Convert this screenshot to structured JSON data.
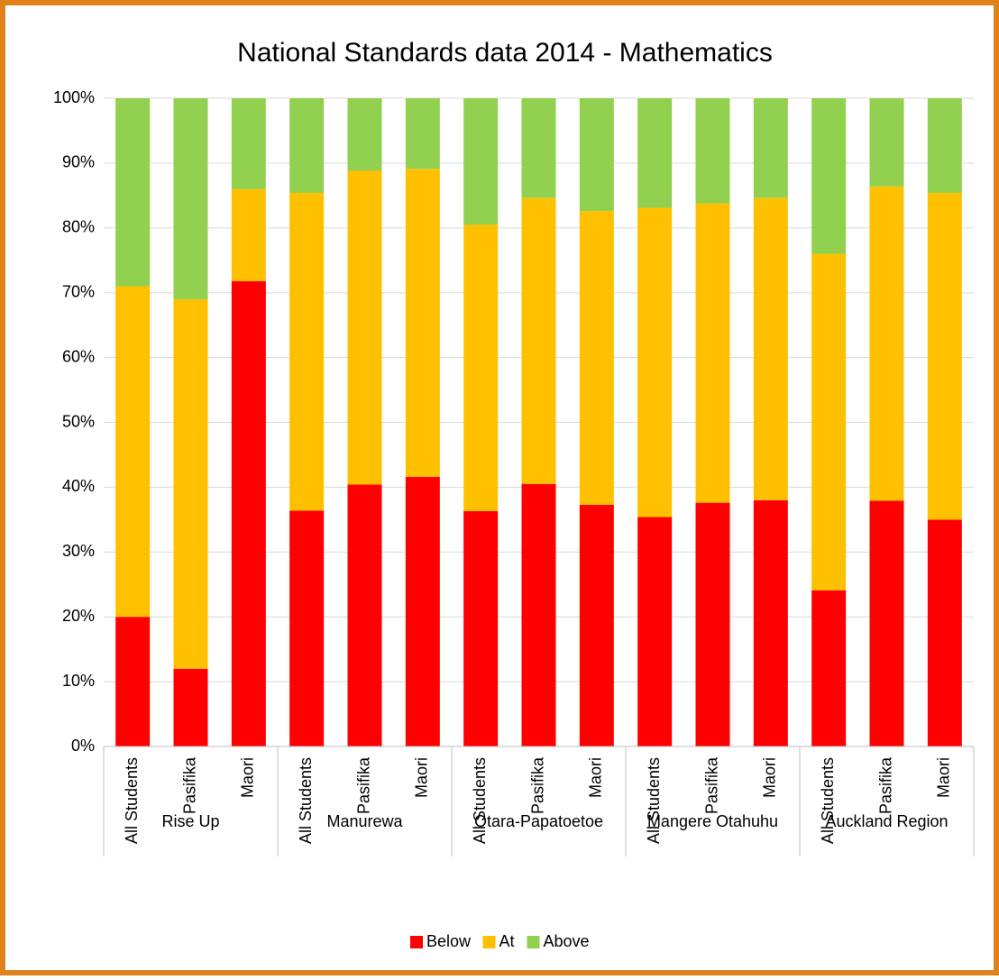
{
  "chart_data": {
    "type": "stacked_bar",
    "title": "National Standards data 2014 - Mathematics",
    "groups": [
      {
        "label": "Rise Up",
        "categories": [
          "All Students",
          "Pasifika",
          "Maori"
        ]
      },
      {
        "label": "Manurewa",
        "categories": [
          "All Students",
          "Pasifika",
          "Maori"
        ]
      },
      {
        "label": "Otara-Papatoetoe",
        "categories": [
          "All Students",
          "Pasifika",
          "Maori"
        ]
      },
      {
        "label": "Mangere Otahuhu",
        "categories": [
          "All Students",
          "Pasifika",
          "Maori"
        ]
      },
      {
        "label": "Auckland Region",
        "categories": [
          "All Students",
          "Pasifika",
          "Maori"
        ]
      }
    ],
    "series": [
      {
        "name": "Below",
        "color": "#ff0000",
        "values": [
          20,
          12,
          71.8,
          36.4,
          40.4,
          41.6,
          36.3,
          40.5,
          37.3,
          35.4,
          37.6,
          38,
          24.1,
          37.9,
          35
        ]
      },
      {
        "name": "At",
        "color": "#ffc000",
        "values": [
          51,
          57,
          14.2,
          49,
          48.4,
          47.5,
          44.2,
          44.1,
          45.3,
          47.7,
          46.2,
          46.6,
          51.9,
          48.5,
          50.4
        ]
      },
      {
        "name": "Above",
        "color": "#92d050",
        "values": [
          29,
          31,
          14,
          14.6,
          11.2,
          10.9,
          19.5,
          15.4,
          17.4,
          16.9,
          16.2,
          15.4,
          24,
          13.6,
          14.6
        ]
      }
    ],
    "ylim": [
      0,
      100
    ],
    "yticks": [
      {
        "value": 0,
        "label": "0%"
      },
      {
        "value": 10,
        "label": "10%"
      },
      {
        "value": 20,
        "label": "20%"
      },
      {
        "value": 30,
        "label": "30%"
      },
      {
        "value": 40,
        "label": "40%"
      },
      {
        "value": 50,
        "label": "50%"
      },
      {
        "value": 60,
        "label": "60%"
      },
      {
        "value": 70,
        "label": "70%"
      },
      {
        "value": 80,
        "label": "80%"
      },
      {
        "value": 90,
        "label": "90%"
      },
      {
        "value": 100,
        "label": "100%"
      }
    ],
    "grid": true,
    "legend": "bottom"
  }
}
